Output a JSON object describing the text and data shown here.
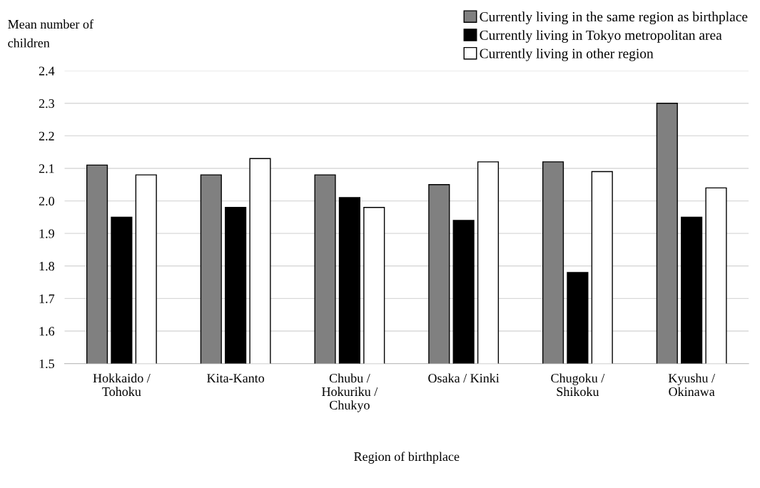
{
  "chart_data": {
    "type": "bar",
    "ylabel": "Mean number of\nchildren",
    "xlabel": "Region of birthplace",
    "categories": [
      "Hokkaido /\nTohoku",
      "Kita-Kanto",
      "Chubu /\nHokuriku /\nChukyo",
      "Osaka / Kinki",
      "Chugoku /\nShikoku",
      "Kyushu /\nOkinawa"
    ],
    "series": [
      {
        "name": "Currently living in the same region as birthplace",
        "color": "#808080",
        "values": [
          2.11,
          2.08,
          2.08,
          2.05,
          2.12,
          2.3
        ]
      },
      {
        "name": "Currently living in Tokyo metropolitan area",
        "color": "#000000",
        "values": [
          1.95,
          1.98,
          2.01,
          1.94,
          1.78,
          1.95
        ]
      },
      {
        "name": "Currently living in other region",
        "color": "#ffffff",
        "values": [
          2.08,
          2.13,
          1.98,
          2.12,
          2.09,
          2.04
        ]
      }
    ],
    "ylim": [
      1.5,
      2.4
    ],
    "yticks": [
      1.5,
      1.6,
      1.7,
      1.8,
      1.9,
      {
        "value": 2.0,
        "label": "2.0"
      },
      2.1,
      2.2,
      2.3,
      2.4
    ],
    "grid": "y",
    "legend": "top right"
  }
}
